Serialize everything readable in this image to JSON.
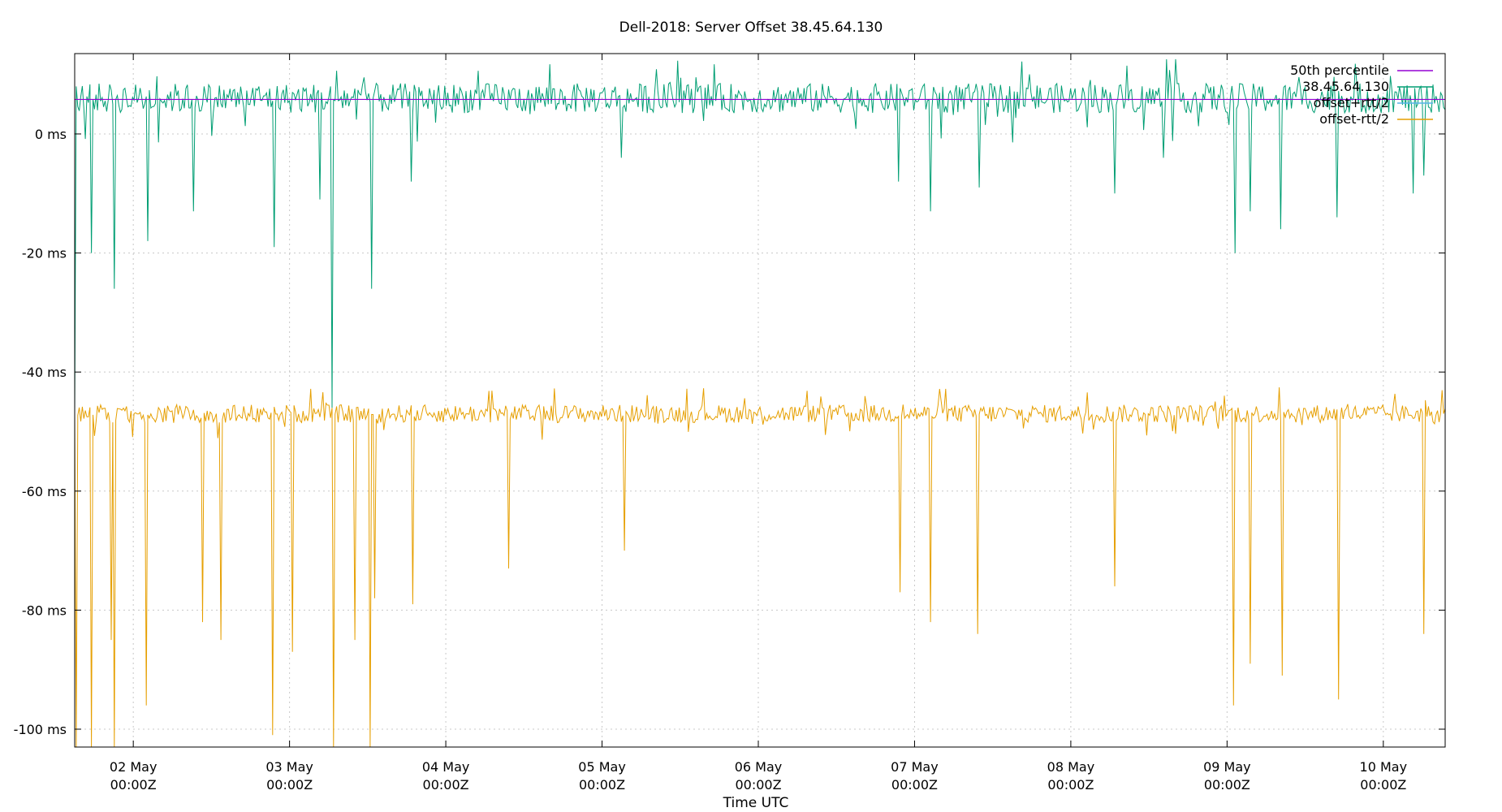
{
  "chart_data": {
    "type": "line",
    "title": "Dell-2018: Server Offset 38.45.64.130",
    "xlabel": "Time UTC",
    "ylabel": "",
    "xlim": [
      "2018-05-01T15:00Z",
      "2018-05-10T09:30Z"
    ],
    "ylim": [
      -103,
      13.5
    ],
    "grid": true,
    "legend_position": "top-right",
    "y_ticks": [
      {
        "value": 0,
        "label": "0 ms"
      },
      {
        "value": -20,
        "label": "-20 ms"
      },
      {
        "value": -40,
        "label": "-40 ms"
      },
      {
        "value": -60,
        "label": "-60 ms"
      },
      {
        "value": -80,
        "label": "-80 ms"
      },
      {
        "value": -100,
        "label": "-100 ms"
      }
    ],
    "x_ticks": [
      {
        "value": "2018-05-02T00:00Z",
        "line1": "02 May",
        "line2": "00:00Z"
      },
      {
        "value": "2018-05-03T00:00Z",
        "line1": "03 May",
        "line2": "00:00Z"
      },
      {
        "value": "2018-05-04T00:00Z",
        "line1": "04 May",
        "line2": "00:00Z"
      },
      {
        "value": "2018-05-05T00:00Z",
        "line1": "05 May",
        "line2": "00:00Z"
      },
      {
        "value": "2018-05-06T00:00Z",
        "line1": "06 May",
        "line2": "00:00Z"
      },
      {
        "value": "2018-05-07T00:00Z",
        "line1": "07 May",
        "line2": "00:00Z"
      },
      {
        "value": "2018-05-08T00:00Z",
        "line1": "08 May",
        "line2": "00:00Z"
      },
      {
        "value": "2018-05-09T00:00Z",
        "line1": "09 May",
        "line2": "00:00Z"
      },
      {
        "value": "2018-05-10T00:00Z",
        "line1": "10 May",
        "line2": "00:00Z"
      }
    ],
    "series": [
      {
        "name": "50th percentile",
        "color": "#9400d3",
        "y_constant": 5.8
      },
      {
        "name": "38.45.64.130",
        "color": "#009e73",
        "baseline": 6,
        "noise": 2.5,
        "spikes": [
          {
            "x": "2018-05-01T15:00Z",
            "y": -47
          },
          {
            "x": "2018-05-01T17:40Z",
            "y": -20
          },
          {
            "x": "2018-05-01T21:00Z",
            "y": -26
          },
          {
            "x": "2018-05-02T02:10Z",
            "y": -18
          },
          {
            "x": "2018-05-02T09:20Z",
            "y": -13
          },
          {
            "x": "2018-05-02T21:40Z",
            "y": -19
          },
          {
            "x": "2018-05-03T04:40Z",
            "y": -11
          },
          {
            "x": "2018-05-03T06:30Z",
            "y": -46
          },
          {
            "x": "2018-05-03T12:30Z",
            "y": -26
          },
          {
            "x": "2018-05-03T18:40Z",
            "y": -8
          },
          {
            "x": "2018-05-05T03:00Z",
            "y": -4
          },
          {
            "x": "2018-05-06T21:30Z",
            "y": -8
          },
          {
            "x": "2018-05-07T02:20Z",
            "y": -13
          },
          {
            "x": "2018-05-07T09:50Z",
            "y": -9
          },
          {
            "x": "2018-05-08T06:40Z",
            "y": -10
          },
          {
            "x": "2018-05-08T14:10Z",
            "y": -4
          },
          {
            "x": "2018-05-09T01:10Z",
            "y": -20
          },
          {
            "x": "2018-05-09T03:30Z",
            "y": -13
          },
          {
            "x": "2018-05-09T08:20Z",
            "y": -16
          },
          {
            "x": "2018-05-09T17:00Z",
            "y": -14
          },
          {
            "x": "2018-05-10T04:30Z",
            "y": -10
          },
          {
            "x": "2018-05-10T06:10Z",
            "y": -7
          }
        ]
      },
      {
        "name": "offset+rtt/2",
        "color": "#56b4e9"
      },
      {
        "name": "offset-rtt/2",
        "color": "#e69f00",
        "baseline": -47,
        "noise": 1.5,
        "spikes": [
          {
            "x": "2018-05-01T15:10Z",
            "y": -103
          },
          {
            "x": "2018-05-01T17:30Z",
            "y": -103
          },
          {
            "x": "2018-05-01T20:40Z",
            "y": -85
          },
          {
            "x": "2018-05-01T21:10Z",
            "y": -103
          },
          {
            "x": "2018-05-02T02:00Z",
            "y": -96
          },
          {
            "x": "2018-05-02T10:40Z",
            "y": -82
          },
          {
            "x": "2018-05-02T13:30Z",
            "y": -85
          },
          {
            "x": "2018-05-02T21:30Z",
            "y": -101
          },
          {
            "x": "2018-05-03T00:30Z",
            "y": -87
          },
          {
            "x": "2018-05-03T06:40Z",
            "y": -103
          },
          {
            "x": "2018-05-03T10:00Z",
            "y": -85
          },
          {
            "x": "2018-05-03T12:20Z",
            "y": -103
          },
          {
            "x": "2018-05-03T13:10Z",
            "y": -78
          },
          {
            "x": "2018-05-03T18:50Z",
            "y": -79
          },
          {
            "x": "2018-05-04T09:40Z",
            "y": -73
          },
          {
            "x": "2018-05-05T03:20Z",
            "y": -70
          },
          {
            "x": "2018-05-06T21:50Z",
            "y": -77
          },
          {
            "x": "2018-05-07T02:30Z",
            "y": -82
          },
          {
            "x": "2018-05-07T09:40Z",
            "y": -84
          },
          {
            "x": "2018-05-08T06:50Z",
            "y": -76
          },
          {
            "x": "2018-05-09T01:00Z",
            "y": -96
          },
          {
            "x": "2018-05-09T03:40Z",
            "y": -89
          },
          {
            "x": "2018-05-09T08:30Z",
            "y": -91
          },
          {
            "x": "2018-05-09T17:10Z",
            "y": -95
          },
          {
            "x": "2018-05-10T06:20Z",
            "y": -84
          }
        ]
      }
    ]
  }
}
